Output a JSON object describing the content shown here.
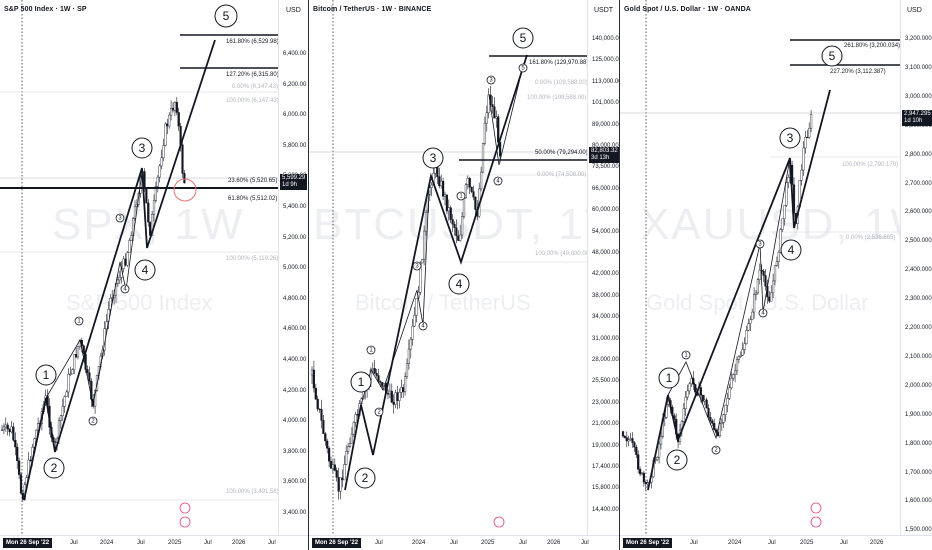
{
  "panels": [
    {
      "symbol_title": "S&P 500 Index · 1W · SP",
      "watermark": "SPX, 1W",
      "watermark_sub": "S&P 500 Index",
      "unit": "USD",
      "ticks": [
        "6,400.00",
        "6,200.00",
        "6,000.00",
        "5,800.00",
        "5,600.00",
        "5,400.00",
        "5,200.00",
        "5,000.00",
        "4,800.00",
        "4,600.00",
        "4,400.00",
        "4,200.00",
        "4,000.00",
        "3,800.00",
        "3,600.00",
        "3,400.00"
      ],
      "price_tag": {
        "price": "5,599.29",
        "countdown": "1d 9h"
      },
      "fib_levels": [
        {
          "label": "161.80% (6,529.98)",
          "emphasis": true
        },
        {
          "label": "127.20% (6,315.80)",
          "emphasis": true
        },
        {
          "label": "0.00% (6,147.43)",
          "emphasis": false
        },
        {
          "label": "100.00% (6,147.43)",
          "emphasis": false
        },
        {
          "label": "23.60% (5,520.65)",
          "emphasis": true
        },
        {
          "label": "61.80% (5,512.02)",
          "emphasis": true
        },
        {
          "label": "100.00% (5,119.26)",
          "emphasis": false
        },
        {
          "label": "100.00% (3,491.58)",
          "emphasis": false
        }
      ],
      "x_ticks": [
        "Jul",
        "2024",
        "Jul",
        "2025",
        "Jul",
        "2026",
        "Jul"
      ],
      "date_label": "Mon 26 Sep '22",
      "waves_major": [
        "1",
        "2",
        "3",
        "4",
        "5"
      ],
      "waves_minor": [
        "1",
        "2",
        "3",
        "4"
      ]
    },
    {
      "symbol_title": "Bitcoin / TetherUS · 1W · BINANCE",
      "watermark": "BTCUSDT, 1W",
      "watermark_sub": "Bitcoin / TetherUS",
      "unit": "USDT",
      "ticks": [
        "140,000.00",
        "125,000.00",
        "113,000.00",
        "101,000.00",
        "89,000.00",
        "80,000.00",
        "73,500.00",
        "66,000.00",
        "60,000.00",
        "54,000.00",
        "48,000.00",
        "42,000.00",
        "38,000.00",
        "34,000.00",
        "31,000.00",
        "28,000.00",
        "25,500.00",
        "23,000.00",
        "21,000.00",
        "19,000.00",
        "17,400.00",
        "15,800.00",
        "14,400.00"
      ],
      "price_tag": {
        "price": "82,803.32",
        "countdown": "3d 13h"
      },
      "fib_levels": [
        {
          "label": "161.80% (129,970.88)",
          "emphasis": true
        },
        {
          "label": "0.00% (109,588.00)",
          "emphasis": false
        },
        {
          "label": "100.00% (109,588.00)",
          "emphasis": false
        },
        {
          "label": "50.00% (79,294.00)",
          "emphasis": true
        },
        {
          "label": "0.00% (74,508.00)",
          "emphasis": false
        },
        {
          "label": "100.00% (49,000.00)",
          "emphasis": false
        }
      ],
      "x_ticks": [
        "Jul",
        "2024",
        "Jul",
        "2025",
        "Jul",
        "2026",
        "Jul"
      ],
      "date_label": "Mon 26 Sep '22",
      "waves_major": [
        "1",
        "2",
        "3",
        "4",
        "5"
      ],
      "waves_minor": [
        "1",
        "2",
        "3",
        "4",
        "5"
      ]
    },
    {
      "symbol_title": "Gold Spot / U.S. Dollar · 1W · OANDA",
      "watermark": "XAUUSD, 1W",
      "watermark_sub": "Gold Spot / U.S. Dollar",
      "unit": "USD",
      "ticks": [
        "3,200.000",
        "3,100.000",
        "3,000.000",
        "2,900.000",
        "2,800.000",
        "2,700.000",
        "2,600.000",
        "2,500.000",
        "2,400.000",
        "2,300.000",
        "2,200.000",
        "2,100.000",
        "2,000.000",
        "1,900.000",
        "1,800.000",
        "1,700.000",
        "1,600.000",
        "1,500.000"
      ],
      "price_tag": {
        "price": "2,947.295",
        "countdown": "1d 10h"
      },
      "fib_levels": [
        {
          "label": "261.80% (3,200.034)",
          "emphasis": true
        },
        {
          "label": "227.20% (3,112.387)",
          "emphasis": true
        },
        {
          "label": "100.00% (2,790.170)",
          "emphasis": false
        },
        {
          "label": "0.00% (2,536.865)",
          "emphasis": false
        }
      ],
      "x_ticks": [
        "Jul",
        "2024",
        "Jul",
        "2025",
        "Jul",
        "2026"
      ],
      "date_label": "Mon 26 Sep '22",
      "waves_major": [
        "1",
        "2",
        "3",
        "4",
        "5"
      ],
      "waves_minor": [
        "1",
        "2",
        "3",
        "4"
      ]
    }
  ],
  "chart_data": [
    {
      "type": "candlestick",
      "title": "S&P 500 Index · 1W · SP",
      "y_unit": "USD",
      "ylim": [
        3300,
        6600
      ],
      "x": [
        "2022-09",
        "2022-10",
        "2022-12",
        "2023-03",
        "2023-07",
        "2023-10",
        "2024-03",
        "2024-04",
        "2024-07",
        "2024-08",
        "2024-12",
        "2025-02",
        "2025-03"
      ],
      "close_path": [
        3585,
        3900,
        4150,
        3820,
        4600,
        4103,
        5250,
        4967,
        5670,
        5150,
        6090,
        6147,
        5599
      ],
      "last_price": 5599.29,
      "fibonacci": [
        {
          "ratio": "161.80%",
          "price": 6529.98
        },
        {
          "ratio": "127.20%",
          "price": 6315.8
        },
        {
          "ratio": "100.00%",
          "price": 6147.43
        },
        {
          "ratio": "23.60%",
          "price": 5520.65
        },
        {
          "ratio": "61.80%",
          "price": 5512.02
        },
        {
          "ratio": "100.00%",
          "price": 5119.26
        },
        {
          "ratio": "100.00%",
          "price": 3491.58
        }
      ],
      "elliott_waves": [
        "1",
        "2",
        "3",
        "4",
        "5"
      ]
    },
    {
      "type": "candlestick",
      "title": "Bitcoin / TetherUS · 1W · BINANCE",
      "y_unit": "USDT",
      "y_scale": "log",
      "ylim": [
        14000,
        145000
      ],
      "x": [
        "2022-09",
        "2022-11",
        "2023-03",
        "2023-06",
        "2023-09",
        "2024-03",
        "2024-08",
        "2024-11",
        "2025-01",
        "2025-03"
      ],
      "close_path": [
        19000,
        15800,
        28000,
        31000,
        25000,
        73000,
        49000,
        99000,
        109588,
        82803
      ],
      "last_price": 82803.32,
      "fibonacci": [
        {
          "ratio": "161.80%",
          "price": 129970.88
        },
        {
          "ratio": "100.00%",
          "price": 109588.0
        },
        {
          "ratio": "50.00%",
          "price": 79294.0
        },
        {
          "ratio": "0.00%",
          "price": 74508.0
        },
        {
          "ratio": "100.00%",
          "price": 49000.0
        }
      ],
      "elliott_waves": [
        "1",
        "2",
        "3",
        "4",
        "5"
      ]
    },
    {
      "type": "candlestick",
      "title": "Gold Spot / U.S. Dollar · 1W · OANDA",
      "y_unit": "USD",
      "ylim": [
        1480,
        3260
      ],
      "x": [
        "2022-09",
        "2022-11",
        "2023-02",
        "2023-05",
        "2023-10",
        "2024-05",
        "2024-10",
        "2024-11",
        "2025-02",
        "2025-03"
      ],
      "close_path": [
        1640,
        1770,
        1810,
        2060,
        1820,
        2400,
        2790,
        2540,
        2900,
        2947
      ],
      "last_price": 2947.295,
      "fibonacci": [
        {
          "ratio": "261.80%",
          "price": 3200.034
        },
        {
          "ratio": "227.20%",
          "price": 3112.387
        },
        {
          "ratio": "100.00%",
          "price": 2790.17
        },
        {
          "ratio": "0.00%",
          "price": 2536.865
        }
      ],
      "elliott_waves": [
        "1",
        "2",
        "3",
        "4",
        "5"
      ]
    }
  ]
}
